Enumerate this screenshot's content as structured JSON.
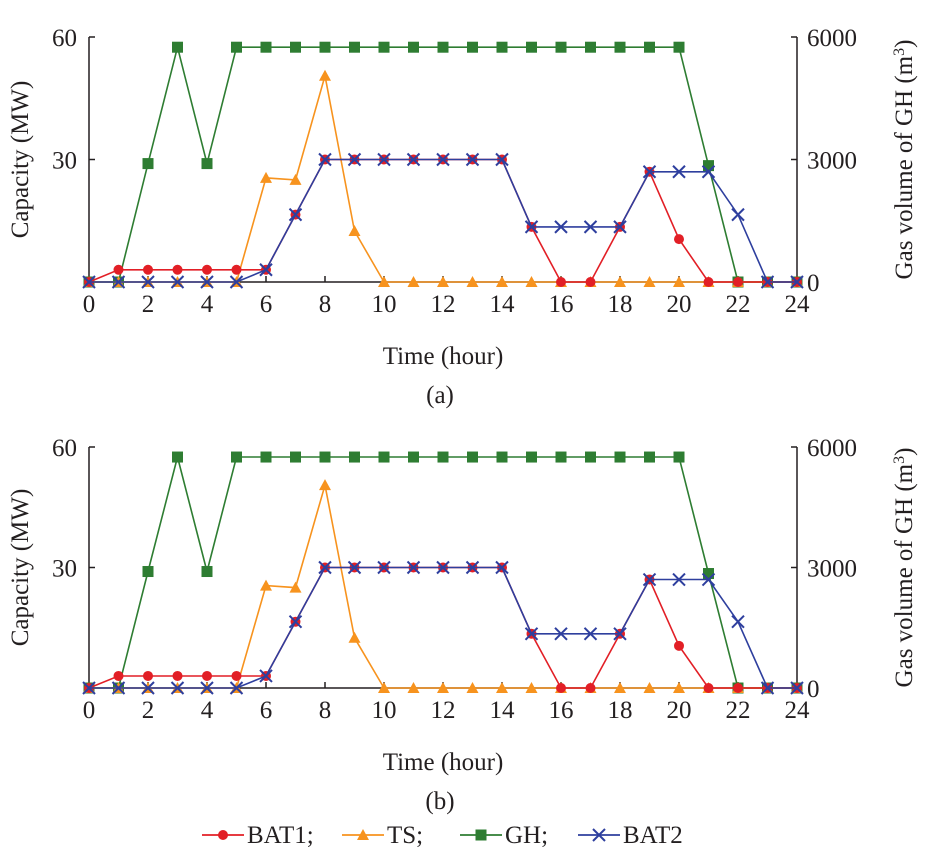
{
  "figure": {
    "legend": [
      {
        "label": "BAT1;",
        "color": "#e21f26",
        "marker": "circle"
      },
      {
        "label": "TS;",
        "color": "#f7931e",
        "marker": "triangle"
      },
      {
        "label": "GH;",
        "color": "#2e7d32",
        "marker": "square"
      },
      {
        "label": "BAT2",
        "color": "#2e3f9e",
        "marker": "x"
      }
    ]
  },
  "chart_data": [
    {
      "type": "line",
      "caption": "(a)",
      "xlabel": "Time (hour)",
      "ylabel": "Capacity (MW)",
      "ylabel_right": "Gas volume of GH (m³)",
      "x": [
        0,
        1,
        2,
        3,
        4,
        5,
        6,
        7,
        8,
        9,
        10,
        11,
        12,
        13,
        14,
        15,
        16,
        17,
        18,
        19,
        20,
        21,
        22,
        23,
        24
      ],
      "xticks": [
        "0",
        "2",
        "4",
        "6",
        "8",
        "10",
        "12",
        "14",
        "16",
        "18",
        "20",
        "22",
        "24"
      ],
      "xlim": [
        0,
        24
      ],
      "ylim": [
        0,
        60
      ],
      "yticks": [
        "30",
        "60"
      ],
      "ylim_right": [
        0,
        6000
      ],
      "yticks_right": [
        "0",
        "3000",
        "6000"
      ],
      "series": [
        {
          "name": "BAT1",
          "axis": "left",
          "color": "#e21f26",
          "marker": "circle",
          "values": [
            0,
            3,
            3,
            3,
            3,
            3,
            3,
            16.5,
            30,
            30,
            30,
            30,
            30,
            30,
            30,
            13.5,
            0,
            0,
            13.5,
            27,
            10.5,
            0,
            0,
            0,
            0
          ]
        },
        {
          "name": "TS",
          "axis": "left",
          "color": "#f7931e",
          "marker": "triangle",
          "values": [
            0,
            0,
            0,
            0,
            0,
            0,
            25.5,
            25,
            50.5,
            12.5,
            0,
            0,
            0,
            0,
            0,
            0,
            0,
            0,
            0,
            0,
            0,
            0,
            0,
            0,
            0
          ]
        },
        {
          "name": "GH",
          "axis": "right",
          "color": "#2e7d32",
          "marker": "square",
          "values": [
            0,
            0,
            2900,
            5750,
            2900,
            5750,
            5750,
            5750,
            5750,
            5750,
            5750,
            5750,
            5750,
            5750,
            5750,
            5750,
            5750,
            5750,
            5750,
            5750,
            5750,
            2850,
            0,
            0,
            0
          ]
        },
        {
          "name": "BAT2",
          "axis": "left",
          "color": "#2e3f9e",
          "marker": "x",
          "values": [
            0,
            0,
            0,
            0,
            0,
            0,
            3,
            16.5,
            30,
            30,
            30,
            30,
            30,
            30,
            30,
            13.5,
            13.5,
            13.5,
            13.5,
            27,
            27,
            27,
            16.5,
            0,
            0
          ]
        }
      ]
    },
    {
      "type": "line",
      "caption": "(b)",
      "xlabel": "Time (hour)",
      "ylabel": "Capacity (MW)",
      "ylabel_right": "Gas volume of GH (m³)",
      "x": [
        0,
        1,
        2,
        3,
        4,
        5,
        6,
        7,
        8,
        9,
        10,
        11,
        12,
        13,
        14,
        15,
        16,
        17,
        18,
        19,
        20,
        21,
        22,
        23,
        24
      ],
      "xticks": [
        "0",
        "2",
        "4",
        "6",
        "8",
        "10",
        "12",
        "14",
        "16",
        "18",
        "20",
        "22",
        "24"
      ],
      "xlim": [
        0,
        24
      ],
      "ylim": [
        0,
        60
      ],
      "yticks": [
        "30",
        "60"
      ],
      "ylim_right": [
        0,
        6000
      ],
      "yticks_right": [
        "0",
        "3000",
        "6000"
      ],
      "series": [
        {
          "name": "BAT1",
          "axis": "left",
          "color": "#e21f26",
          "marker": "circle",
          "values": [
            0,
            3,
            3,
            3,
            3,
            3,
            3,
            16.5,
            30,
            30,
            30,
            30,
            30,
            30,
            30,
            13.5,
            0,
            0,
            13.5,
            27,
            10.5,
            0,
            0,
            0,
            0
          ]
        },
        {
          "name": "TS",
          "axis": "left",
          "color": "#f7931e",
          "marker": "triangle",
          "values": [
            0,
            0,
            0,
            0,
            0,
            0,
            25.5,
            25,
            50.5,
            12.5,
            0,
            0,
            0,
            0,
            0,
            0,
            0,
            0,
            0,
            0,
            0,
            0,
            0,
            0,
            0
          ]
        },
        {
          "name": "GH",
          "axis": "right",
          "color": "#2e7d32",
          "marker": "square",
          "values": [
            0,
            0,
            2900,
            5750,
            2900,
            5750,
            5750,
            5750,
            5750,
            5750,
            5750,
            5750,
            5750,
            5750,
            5750,
            5750,
            5750,
            5750,
            5750,
            5750,
            5750,
            2850,
            0,
            0,
            0
          ]
        },
        {
          "name": "BAT2",
          "axis": "left",
          "color": "#2e3f9e",
          "marker": "x",
          "values": [
            0,
            0,
            0,
            0,
            0,
            0,
            3,
            16.5,
            30,
            30,
            30,
            30,
            30,
            30,
            30,
            13.5,
            13.5,
            13.5,
            13.5,
            27,
            27,
            27,
            16.5,
            0,
            0
          ]
        }
      ]
    }
  ]
}
